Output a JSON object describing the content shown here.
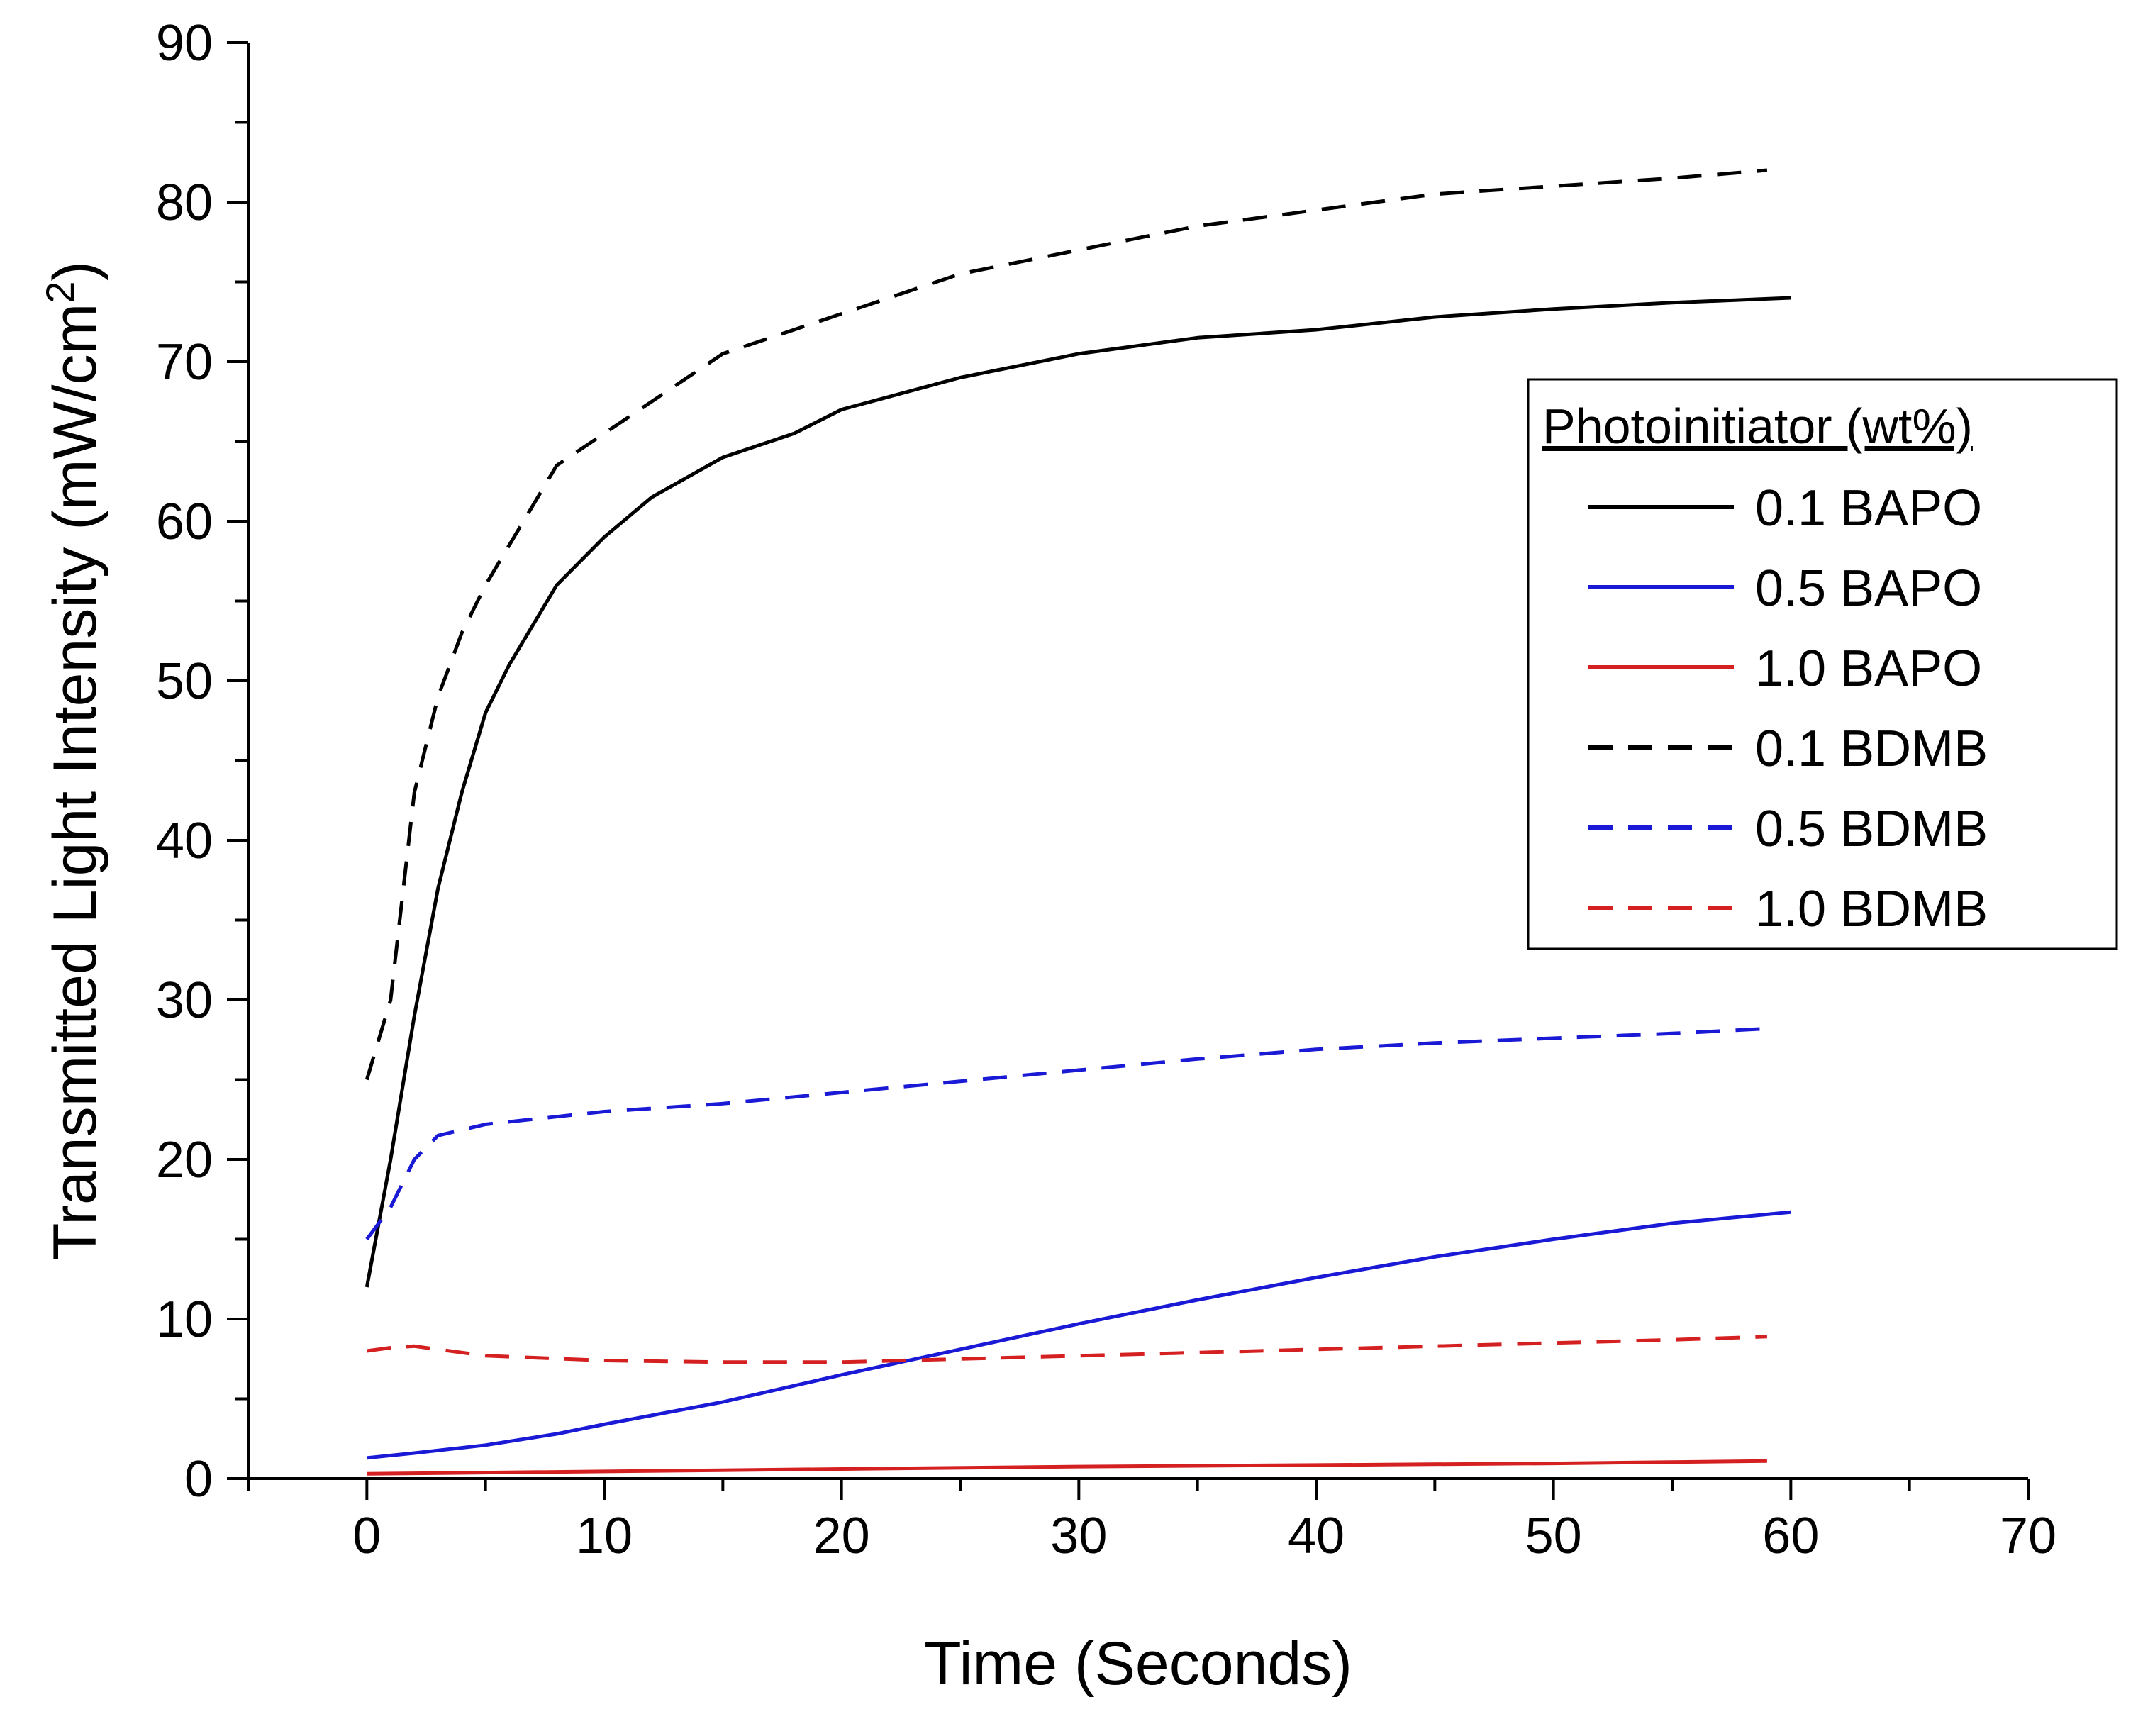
{
  "chart_data": {
    "type": "line",
    "xlabel": "Time (Seconds)",
    "ylabel": "Transmitted Light Intensity (mW/cm",
    "ylabel_sup": "2",
    "ylabel_end": ")",
    "xlim": [
      -5,
      70
    ],
    "ylim": [
      0,
      90
    ],
    "x_ticks": [
      0,
      10,
      20,
      30,
      40,
      50,
      60,
      70
    ],
    "y_ticks": [
      0,
      10,
      20,
      30,
      40,
      50,
      60,
      70,
      80,
      90
    ],
    "grid": false,
    "legend": {
      "title": "Photoinitiator (wt%)",
      "placement": "right"
    },
    "series": [
      {
        "name": "0.1 BAPO",
        "color": "#000000",
        "dash": "solid",
        "x": [
          0,
          1,
          2,
          3,
          4,
          5,
          6,
          8,
          10,
          12,
          15,
          18,
          20,
          25,
          30,
          35,
          40,
          45,
          50,
          55,
          60
        ],
        "y": [
          12,
          20,
          29,
          37,
          43,
          48,
          51,
          56,
          59,
          61.5,
          64,
          65.5,
          67,
          69,
          70.5,
          71.5,
          72,
          72.8,
          73.3,
          73.7,
          74
        ]
      },
      {
        "name": "0.5 BAPO",
        "color": "#1a1ad6",
        "dash": "solid",
        "x": [
          0,
          2,
          5,
          8,
          10,
          15,
          20,
          25,
          30,
          35,
          40,
          45,
          50,
          55,
          60
        ],
        "y": [
          1.3,
          1.6,
          2.1,
          2.8,
          3.4,
          4.8,
          6.5,
          8.1,
          9.7,
          11.2,
          12.6,
          13.9,
          15,
          16,
          16.7
        ]
      },
      {
        "name": "1.0 BAPO",
        "color": "#d42020",
        "dash": "solid",
        "x": [
          0,
          10,
          20,
          30,
          40,
          50,
          59
        ],
        "y": [
          0.3,
          0.45,
          0.6,
          0.75,
          0.85,
          0.95,
          1.1
        ]
      },
      {
        "name": "0.1 BDMB",
        "color": "#000000",
        "dash": "dashed",
        "x": [
          0,
          1,
          2,
          3,
          4,
          5,
          6,
          8,
          10,
          12,
          15,
          18,
          20,
          25,
          30,
          35,
          40,
          45,
          50,
          55,
          59
        ],
        "y": [
          25,
          30,
          43,
          49,
          53,
          56,
          58.5,
          63.5,
          65.5,
          67.5,
          70.5,
          72,
          73,
          75.5,
          77,
          78.5,
          79.5,
          80.5,
          81,
          81.5,
          82
        ]
      },
      {
        "name": "0.5 BDMB",
        "color": "#1a1ad6",
        "dash": "dashed",
        "x": [
          0,
          1,
          2,
          3,
          5,
          10,
          15,
          20,
          25,
          30,
          35,
          40,
          45,
          50,
          55,
          59
        ],
        "y": [
          15,
          17,
          20,
          21.5,
          22.2,
          23,
          23.5,
          24.2,
          24.9,
          25.6,
          26.3,
          26.9,
          27.3,
          27.6,
          27.9,
          28.2
        ]
      },
      {
        "name": "1.0 BDMB",
        "color": "#d42020",
        "dash": "dashed",
        "x": [
          0,
          1,
          2,
          5,
          10,
          15,
          20,
          25,
          30,
          35,
          40,
          45,
          50,
          55,
          59
        ],
        "y": [
          8,
          8.2,
          8.3,
          7.7,
          7.4,
          7.3,
          7.3,
          7.5,
          7.7,
          7.9,
          8.1,
          8.3,
          8.5,
          8.7,
          8.9
        ]
      }
    ]
  }
}
